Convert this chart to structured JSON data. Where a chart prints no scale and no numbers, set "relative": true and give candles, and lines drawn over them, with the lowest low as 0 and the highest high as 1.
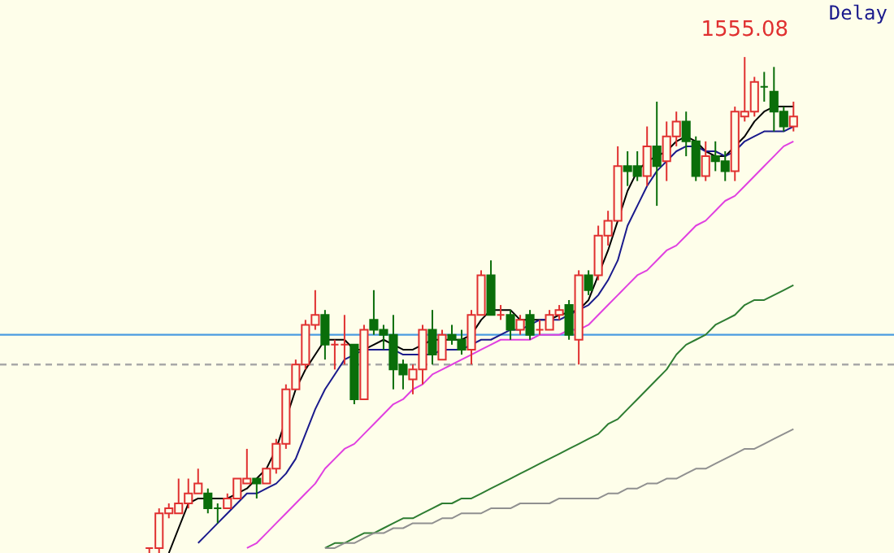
{
  "chart_data": {
    "type": "candlestick",
    "relative": true,
    "categories": [
      null,
      null,
      null,
      null,
      null,
      null,
      null,
      null,
      null,
      null,
      null,
      null,
      null,
      null,
      null,
      null,
      null,
      null,
      null,
      null,
      null,
      null,
      null,
      null,
      null,
      null,
      null,
      null,
      null,
      null,
      null,
      null,
      null,
      null,
      null,
      null,
      null,
      null,
      null,
      null,
      null,
      null,
      null,
      null,
      null,
      null,
      null,
      null,
      null,
      null,
      null,
      null,
      null,
      null,
      null,
      null,
      null,
      null,
      null,
      null,
      null,
      null,
      null,
      null,
      null,
      null,
      null
    ],
    "ohlc": [
      [
        0.01,
        0.01,
        0.0,
        0.01
      ],
      [
        0.01,
        0.09,
        0.0,
        0.08
      ],
      [
        0.08,
        0.1,
        0.07,
        0.09
      ],
      [
        0.08,
        0.15,
        0.08,
        0.1
      ],
      [
        0.1,
        0.15,
        0.09,
        0.12
      ],
      [
        0.12,
        0.17,
        0.12,
        0.14
      ],
      [
        0.12,
        0.13,
        0.08,
        0.09
      ],
      [
        0.09,
        0.1,
        0.06,
        0.09
      ],
      [
        0.09,
        0.12,
        0.09,
        0.11
      ],
      [
        0.11,
        0.15,
        0.11,
        0.15
      ],
      [
        0.14,
        0.21,
        0.14,
        0.15
      ],
      [
        0.15,
        0.15,
        0.11,
        0.14
      ],
      [
        0.14,
        0.17,
        0.14,
        0.17
      ],
      [
        0.17,
        0.23,
        0.16,
        0.22
      ],
      [
        0.22,
        0.34,
        0.21,
        0.33
      ],
      [
        0.33,
        0.39,
        0.33,
        0.38
      ],
      [
        0.38,
        0.47,
        0.37,
        0.46
      ],
      [
        0.46,
        0.53,
        0.45,
        0.48
      ],
      [
        0.48,
        0.49,
        0.39,
        0.42
      ],
      [
        0.42,
        0.43,
        0.37,
        0.42
      ],
      [
        0.42,
        0.48,
        0.38,
        0.42
      ],
      [
        0.42,
        0.42,
        0.3,
        0.31
      ],
      [
        0.31,
        0.46,
        0.31,
        0.45
      ],
      [
        0.47,
        0.53,
        0.44,
        0.45
      ],
      [
        0.45,
        0.46,
        0.41,
        0.44
      ],
      [
        0.44,
        0.48,
        0.33,
        0.37
      ],
      [
        0.38,
        0.39,
        0.33,
        0.36
      ],
      [
        0.35,
        0.38,
        0.32,
        0.37
      ],
      [
        0.37,
        0.46,
        0.34,
        0.45
      ],
      [
        0.45,
        0.49,
        0.38,
        0.4
      ],
      [
        0.39,
        0.45,
        0.39,
        0.44
      ],
      [
        0.44,
        0.46,
        0.42,
        0.43
      ],
      [
        0.43,
        0.45,
        0.4,
        0.41
      ],
      [
        0.41,
        0.49,
        0.38,
        0.48
      ],
      [
        0.48,
        0.57,
        0.48,
        0.56
      ],
      [
        0.56,
        0.59,
        0.48,
        0.48
      ],
      [
        0.48,
        0.5,
        0.47,
        0.48
      ],
      [
        0.48,
        0.49,
        0.43,
        0.45
      ],
      [
        0.45,
        0.48,
        0.44,
        0.47
      ],
      [
        0.48,
        0.49,
        0.43,
        0.44
      ],
      [
        0.45,
        0.47,
        0.44,
        0.45
      ],
      [
        0.45,
        0.49,
        0.45,
        0.48
      ],
      [
        0.48,
        0.5,
        0.47,
        0.49
      ],
      [
        0.5,
        0.51,
        0.43,
        0.44
      ],
      [
        0.43,
        0.57,
        0.38,
        0.56
      ],
      [
        0.56,
        0.57,
        0.52,
        0.53
      ],
      [
        0.56,
        0.66,
        0.55,
        0.64
      ],
      [
        0.64,
        0.69,
        0.62,
        0.67
      ],
      [
        0.67,
        0.82,
        0.67,
        0.78
      ],
      [
        0.78,
        0.81,
        0.74,
        0.77
      ],
      [
        0.78,
        0.81,
        0.75,
        0.76
      ],
      [
        0.76,
        0.86,
        0.74,
        0.82
      ],
      [
        0.82,
        0.91,
        0.7,
        0.78
      ],
      [
        0.79,
        0.87,
        0.75,
        0.84
      ],
      [
        0.84,
        0.89,
        0.82,
        0.87
      ],
      [
        0.87,
        0.89,
        0.8,
        0.83
      ],
      [
        0.83,
        0.84,
        0.75,
        0.76
      ],
      [
        0.76,
        0.83,
        0.75,
        0.8
      ],
      [
        0.8,
        0.83,
        0.77,
        0.79
      ],
      [
        0.79,
        0.81,
        0.75,
        0.77
      ],
      [
        0.77,
        0.9,
        0.75,
        0.89
      ],
      [
        0.88,
        1.0,
        0.87,
        0.89
      ],
      [
        0.89,
        0.96,
        0.88,
        0.95
      ],
      [
        0.94,
        0.97,
        0.91,
        0.94
      ],
      [
        0.93,
        0.98,
        0.85,
        0.89
      ],
      [
        0.89,
        0.9,
        0.85,
        0.86
      ],
      [
        0.86,
        0.91,
        0.85,
        0.88
      ]
    ],
    "colors": [
      "#e03030",
      "#e03030",
      "#e03030",
      "#e03030",
      "#e03030",
      "#e03030",
      "#0a6e0a",
      "#0a6e0a",
      "#e03030",
      "#e03030",
      "#e03030",
      "#0a6e0a",
      "#e03030",
      "#e03030",
      "#e03030",
      "#e03030",
      "#e03030",
      "#e03030",
      "#0a6e0a",
      "#e03030",
      "#e03030",
      "#0a6e0a",
      "#e03030",
      "#0a6e0a",
      "#0a6e0a",
      "#0a6e0a",
      "#0a6e0a",
      "#e03030",
      "#e03030",
      "#0a6e0a",
      "#e03030",
      "#0a6e0a",
      "#0a6e0a",
      "#e03030",
      "#e03030",
      "#0a6e0a",
      "#e03030",
      "#0a6e0a",
      "#e03030",
      "#0a6e0a",
      "#e03030",
      "#e03030",
      "#e03030",
      "#0a6e0a",
      "#e03030",
      "#0a6e0a",
      "#e03030",
      "#e03030",
      "#e03030",
      "#0a6e0a",
      "#0a6e0a",
      "#e03030",
      "#0a6e0a",
      "#e03030",
      "#e03030",
      "#0a6e0a",
      "#0a6e0a",
      "#e03030",
      "#0a6e0a",
      "#0a6e0a",
      "#e03030",
      "#e03030",
      "#e03030",
      "#0a6e0a",
      "#0a6e0a",
      "#0a6e0a",
      "#e03030"
    ],
    "series": [
      {
        "type": "line",
        "color": "#000000",
        "values": [
          null,
          null,
          0.0,
          0.05,
          0.1,
          0.11,
          0.11,
          0.11,
          0.11,
          0.12,
          0.13,
          0.15,
          0.17,
          0.21,
          null,
          0.33,
          0.37,
          0.4,
          0.43,
          0.43,
          0.43,
          0.41,
          0.41,
          0.42,
          0.43,
          0.42,
          0.41,
          0.41,
          0.42,
          0.43,
          0.43,
          0.43,
          0.43,
          0.44,
          0.47,
          0.49,
          0.49,
          0.49,
          0.47,
          0.47,
          0.47,
          0.47,
          0.48,
          null,
          0.49,
          0.51,
          0.56,
          0.61,
          0.67,
          0.73,
          0.77,
          0.79,
          0.8,
          0.81,
          0.83,
          0.84,
          0.83,
          0.81,
          0.8,
          0.8,
          null,
          0.84,
          0.87,
          0.89,
          0.9,
          0.9,
          0.9
        ]
      },
      {
        "type": "line",
        "color": "#1a1a8c",
        "values": [
          null,
          null,
          null,
          null,
          null,
          0.02,
          0.04,
          0.06,
          0.08,
          0.1,
          0.12,
          0.12,
          0.13,
          0.14,
          0.16,
          0.19,
          0.24,
          0.29,
          0.33,
          0.36,
          0.39,
          0.4,
          0.41,
          0.41,
          0.41,
          0.41,
          0.4,
          0.4,
          0.4,
          0.4,
          0.41,
          0.41,
          0.41,
          0.42,
          0.43,
          0.43,
          0.44,
          0.45,
          0.45,
          0.46,
          0.47,
          0.47,
          0.47,
          0.48,
          0.49,
          0.5,
          0.52,
          0.55,
          0.59,
          0.66,
          0.7,
          0.74,
          0.77,
          0.79,
          0.81,
          0.82,
          0.82,
          0.81,
          0.81,
          0.8,
          0.81,
          0.83,
          0.84,
          0.85,
          0.85,
          0.85,
          0.86
        ]
      },
      {
        "type": "line",
        "color": "#e040e0",
        "values": [
          null,
          null,
          null,
          null,
          null,
          null,
          null,
          null,
          null,
          null,
          0.01,
          0.02,
          0.04,
          0.06,
          0.08,
          0.1,
          0.12,
          0.14,
          0.17,
          0.19,
          0.21,
          0.22,
          0.24,
          0.26,
          0.28,
          0.3,
          0.31,
          0.33,
          0.34,
          0.36,
          0.37,
          0.38,
          0.39,
          0.4,
          0.41,
          0.42,
          0.43,
          0.43,
          0.43,
          0.43,
          0.44,
          0.44,
          0.44,
          0.45,
          0.45,
          0.46,
          0.48,
          0.5,
          0.52,
          0.54,
          0.56,
          0.57,
          0.59,
          0.61,
          0.62,
          0.64,
          0.66,
          0.67,
          0.69,
          0.71,
          0.72,
          0.74,
          0.76,
          0.78,
          0.8,
          0.82,
          0.83
        ]
      },
      {
        "type": "line",
        "color": "#2e7d32",
        "values": [
          null,
          null,
          null,
          null,
          null,
          null,
          null,
          null,
          null,
          null,
          null,
          null,
          null,
          null,
          null,
          null,
          null,
          null,
          0.01,
          0.02,
          0.02,
          0.03,
          0.04,
          0.04,
          0.05,
          0.06,
          0.07,
          0.07,
          0.08,
          0.09,
          0.1,
          0.1,
          0.11,
          0.11,
          0.12,
          0.13,
          0.14,
          0.15,
          0.16,
          0.17,
          0.18,
          0.19,
          0.2,
          0.21,
          0.22,
          0.23,
          0.24,
          0.26,
          0.27,
          0.29,
          0.31,
          0.33,
          0.35,
          0.37,
          0.4,
          0.42,
          0.43,
          0.44,
          0.46,
          0.47,
          0.48,
          0.5,
          0.51,
          0.51,
          0.52,
          0.53,
          0.54
        ]
      },
      {
        "type": "line",
        "color": "#909090",
        "values": [
          null,
          null,
          null,
          null,
          null,
          null,
          null,
          null,
          null,
          null,
          null,
          null,
          null,
          null,
          null,
          null,
          null,
          null,
          0.01,
          0.01,
          0.02,
          0.02,
          0.03,
          0.04,
          0.04,
          0.05,
          0.05,
          0.06,
          0.06,
          0.06,
          0.07,
          0.07,
          0.08,
          0.08,
          0.08,
          0.09,
          0.09,
          0.09,
          0.1,
          0.1,
          0.1,
          0.1,
          0.11,
          0.11,
          0.11,
          0.11,
          0.11,
          0.12,
          0.12,
          0.13,
          0.13,
          0.14,
          0.14,
          0.15,
          0.15,
          0.16,
          0.17,
          0.17,
          0.18,
          0.19,
          0.2,
          0.21,
          0.21,
          0.22,
          0.23,
          0.24,
          0.25
        ]
      }
    ],
    "ref_lines": [
      {
        "axis": "y",
        "value": 0.44,
        "color": "#4a9be0",
        "line_style": "solid"
      },
      {
        "axis": "y",
        "value": 0.38,
        "color": "#a8a8a8",
        "line_style": "dashed"
      }
    ],
    "annotations": [
      "Delay",
      {
        "text": "1555.08",
        "y": 1.0
      }
    ]
  }
}
